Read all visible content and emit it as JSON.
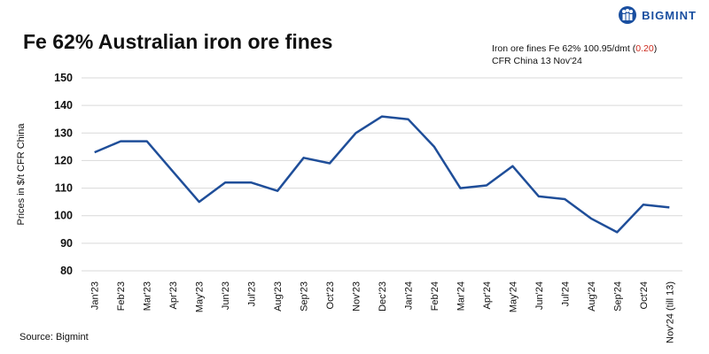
{
  "brand": {
    "name": "BIGMINT",
    "logo_icon": "bigmint-logo-icon",
    "color": "#1a4fa0"
  },
  "header": {
    "title": "Fe 62% Australian iron ore fines"
  },
  "note": {
    "line1_prefix": "Iron ore fines Fe 62% 100.95/dmt (",
    "change": "0.20",
    "line1_suffix": ")",
    "line2": "CFR China 13 Nov'24",
    "change_color": "#cc2a1d"
  },
  "source": "Source: Bigmint",
  "chart_data": {
    "type": "line",
    "title": "Fe 62% Australian iron ore fines",
    "ylabel": "Prices in $/t CFR China",
    "xlabel": "",
    "ylim": [
      80,
      150
    ],
    "yticks": [
      80,
      90,
      100,
      110,
      120,
      130,
      140,
      150
    ],
    "grid": true,
    "line_color": "#1f4e99",
    "categories": [
      "Jan'23",
      "Feb'23",
      "Mar'23",
      "Apr'23",
      "May'23",
      "Jun'23",
      "Jul'23",
      "Aug'23",
      "Sep'23",
      "Oct'23",
      "Nov'23",
      "Dec'23",
      "Jan'24",
      "Feb'24",
      "Mar'24",
      "Apr'24",
      "May'24",
      "Jun'24",
      "Jul'24",
      "Aug'24",
      "Sep'24",
      "Oct'24",
      "Nov'24 (till 13)"
    ],
    "values": [
      123,
      127,
      127,
      116,
      105,
      112,
      112,
      109,
      121,
      119,
      130,
      136,
      135,
      125,
      110,
      111,
      118,
      107,
      106,
      99,
      94,
      104,
      103
    ]
  }
}
